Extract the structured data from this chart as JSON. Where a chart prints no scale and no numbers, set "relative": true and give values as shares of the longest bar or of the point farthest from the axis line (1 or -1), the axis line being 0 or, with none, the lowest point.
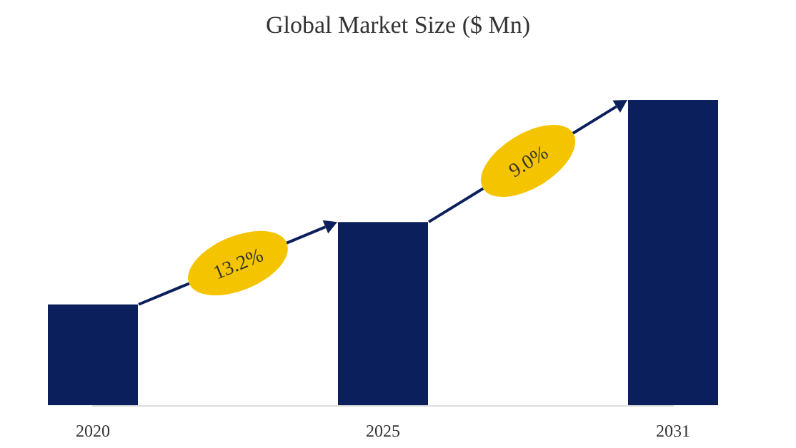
{
  "chart_data": {
    "type": "bar",
    "title": "Global Market Size ($ Mn)",
    "categories": [
      "2020",
      "2025",
      "2031"
    ],
    "values": [
      0.33,
      0.6,
      1
    ],
    "color": "#0b1f5c",
    "relative": true,
    "annotations": [
      "13.2%",
      "9.0%"
    ]
  }
}
